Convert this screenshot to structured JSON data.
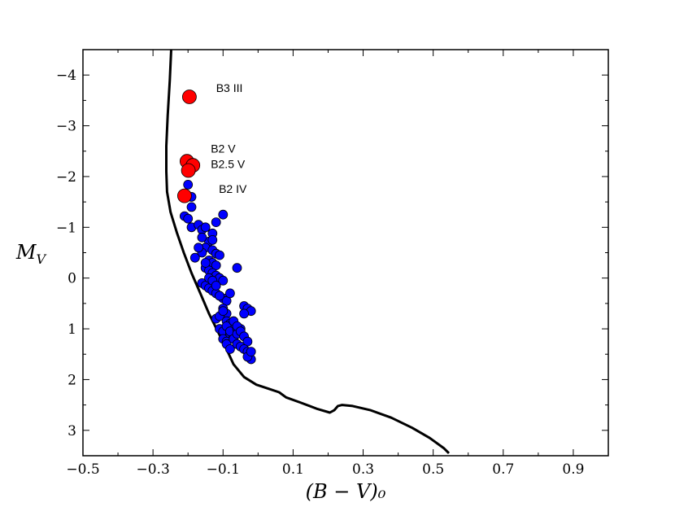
{
  "chart_data": {
    "type": "scatter",
    "title": "",
    "xlabel": "(B − V)₀",
    "ylabel": "M_V",
    "xlim": [
      -0.5,
      1.0
    ],
    "ylim": [
      3.5,
      -4.5
    ],
    "grid": false,
    "x_ticks": [
      -0.5,
      -0.3,
      -0.1,
      0.1,
      0.3,
      0.5,
      0.7,
      0.9
    ],
    "x_tick_labels": [
      "−0.5",
      "−0.3",
      "−0.1",
      "0.1",
      "0.3",
      "0.5",
      "0.7",
      "0.9"
    ],
    "y_ticks": [
      -4,
      -3,
      -2,
      -1,
      0,
      1,
      2,
      3
    ],
    "y_tick_labels": [
      "−4",
      "−3",
      "−2",
      "−1",
      "0",
      "1",
      "2",
      "3"
    ],
    "series": [
      {
        "name": "isochrone",
        "kind": "line",
        "color": "#000000",
        "x": [
          -0.248,
          -0.252,
          -0.258,
          -0.262,
          -0.262,
          -0.26,
          -0.25,
          -0.232,
          -0.212,
          -0.19,
          -0.165,
          -0.14,
          -0.115,
          -0.09,
          -0.07,
          -0.04,
          -0.005,
          0.03,
          0.06,
          0.08,
          0.12,
          0.17,
          0.205,
          0.218,
          0.228,
          0.24,
          0.27,
          0.32,
          0.38,
          0.44,
          0.49,
          0.53,
          0.545
        ],
        "y": [
          -4.5,
          -3.9,
          -3.2,
          -2.6,
          -2.1,
          -1.7,
          -1.3,
          -0.9,
          -0.5,
          -0.1,
          0.3,
          0.7,
          1.05,
          1.4,
          1.7,
          1.95,
          2.1,
          2.18,
          2.25,
          2.35,
          2.45,
          2.58,
          2.65,
          2.6,
          2.52,
          2.5,
          2.52,
          2.6,
          2.75,
          2.95,
          3.15,
          3.35,
          3.45
        ]
      },
      {
        "name": "blue stars",
        "kind": "scatter",
        "color": "#0000ff",
        "x": [
          -0.2,
          -0.19,
          -0.19,
          -0.21,
          -0.2,
          -0.19,
          -0.17,
          -0.16,
          -0.15,
          -0.13,
          -0.12,
          -0.14,
          -0.15,
          -0.16,
          -0.13,
          -0.12,
          -0.11,
          -0.14,
          -0.13,
          -0.12,
          -0.15,
          -0.14,
          -0.13,
          -0.12,
          -0.11,
          -0.1,
          -0.16,
          -0.15,
          -0.14,
          -0.13,
          -0.12,
          -0.11,
          -0.1,
          -0.09,
          -0.14,
          -0.13,
          -0.12,
          -0.11,
          -0.1,
          -0.09,
          -0.12,
          -0.11,
          -0.1,
          -0.09,
          -0.08,
          -0.11,
          -0.1,
          -0.09,
          -0.08,
          -0.07,
          -0.1,
          -0.09,
          -0.08,
          -0.07,
          -0.06,
          -0.09,
          -0.08,
          -0.07,
          -0.06,
          -0.05,
          -0.07,
          -0.06,
          -0.05,
          -0.04,
          -0.03,
          -0.06,
          -0.05,
          -0.04,
          -0.03,
          -0.02,
          -0.04,
          -0.03,
          -0.02,
          -0.03,
          -0.02,
          -0.08,
          -0.06,
          -0.04,
          -0.18,
          -0.17,
          -0.16,
          -0.15,
          -0.13,
          -0.1
        ],
        "y": [
          -1.84,
          -1.6,
          -1.4,
          -1.22,
          -1.17,
          -1.0,
          -1.05,
          -0.95,
          -1.0,
          -0.88,
          -1.1,
          -0.72,
          -0.6,
          -0.5,
          -0.55,
          -0.48,
          -0.45,
          -0.35,
          -0.3,
          -0.25,
          -0.2,
          -0.15,
          -0.1,
          -0.05,
          0.0,
          0.05,
          0.1,
          0.15,
          0.2,
          0.25,
          0.3,
          0.35,
          0.4,
          0.45,
          0.0,
          0.05,
          0.15,
          0.35,
          0.6,
          0.7,
          0.8,
          0.75,
          0.65,
          0.85,
          0.9,
          1.0,
          1.05,
          0.95,
          1.1,
          1.15,
          1.2,
          1.25,
          1.05,
          0.85,
          1.0,
          1.3,
          1.4,
          1.2,
          1.1,
          1.0,
          0.85,
          0.95,
          1.05,
          1.15,
          1.25,
          1.3,
          1.35,
          1.4,
          1.45,
          1.6,
          0.55,
          0.6,
          0.65,
          1.55,
          1.45,
          0.3,
          -0.2,
          0.7,
          -0.4,
          -0.6,
          -0.8,
          -0.3,
          -0.75,
          -1.25
        ]
      },
      {
        "name": "red stars",
        "kind": "scatter",
        "color": "#ff0000",
        "x": [
          -0.196,
          -0.203,
          -0.186,
          -0.199,
          -0.21
        ],
        "y": [
          -3.57,
          -2.3,
          -2.22,
          -2.12,
          -1.62
        ]
      }
    ],
    "annotations": [
      {
        "text": "B3 III",
        "x": -0.12,
        "y": -3.67
      },
      {
        "text": "B2 V",
        "x": -0.135,
        "y": -2.47
      },
      {
        "text": "B2.5 V",
        "x": -0.135,
        "y": -2.17
      },
      {
        "text": "B2 IV",
        "x": -0.112,
        "y": -1.68
      }
    ]
  }
}
